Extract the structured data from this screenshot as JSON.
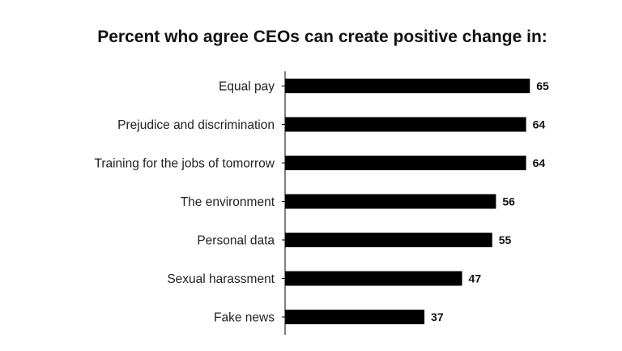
{
  "chart_data": {
    "type": "bar",
    "orientation": "horizontal",
    "title": "Percent who agree CEOs can create positive change in:",
    "xlabel": "",
    "ylabel": "",
    "categories": [
      "Equal pay",
      "Prejudice and discrimination",
      "Training for the jobs of tomorrow",
      "The environment",
      "Personal data",
      "Sexual harassment",
      "Fake news"
    ],
    "values": [
      65,
      64,
      64,
      56,
      55,
      47,
      37
    ],
    "value_labels": [
      "65",
      "64",
      "64",
      "56",
      "55",
      "47",
      "37"
    ],
    "xlim": [
      0,
      100
    ],
    "grid": false,
    "legend": "none",
    "bar_color": "#000000",
    "axis_color": "#000000"
  }
}
